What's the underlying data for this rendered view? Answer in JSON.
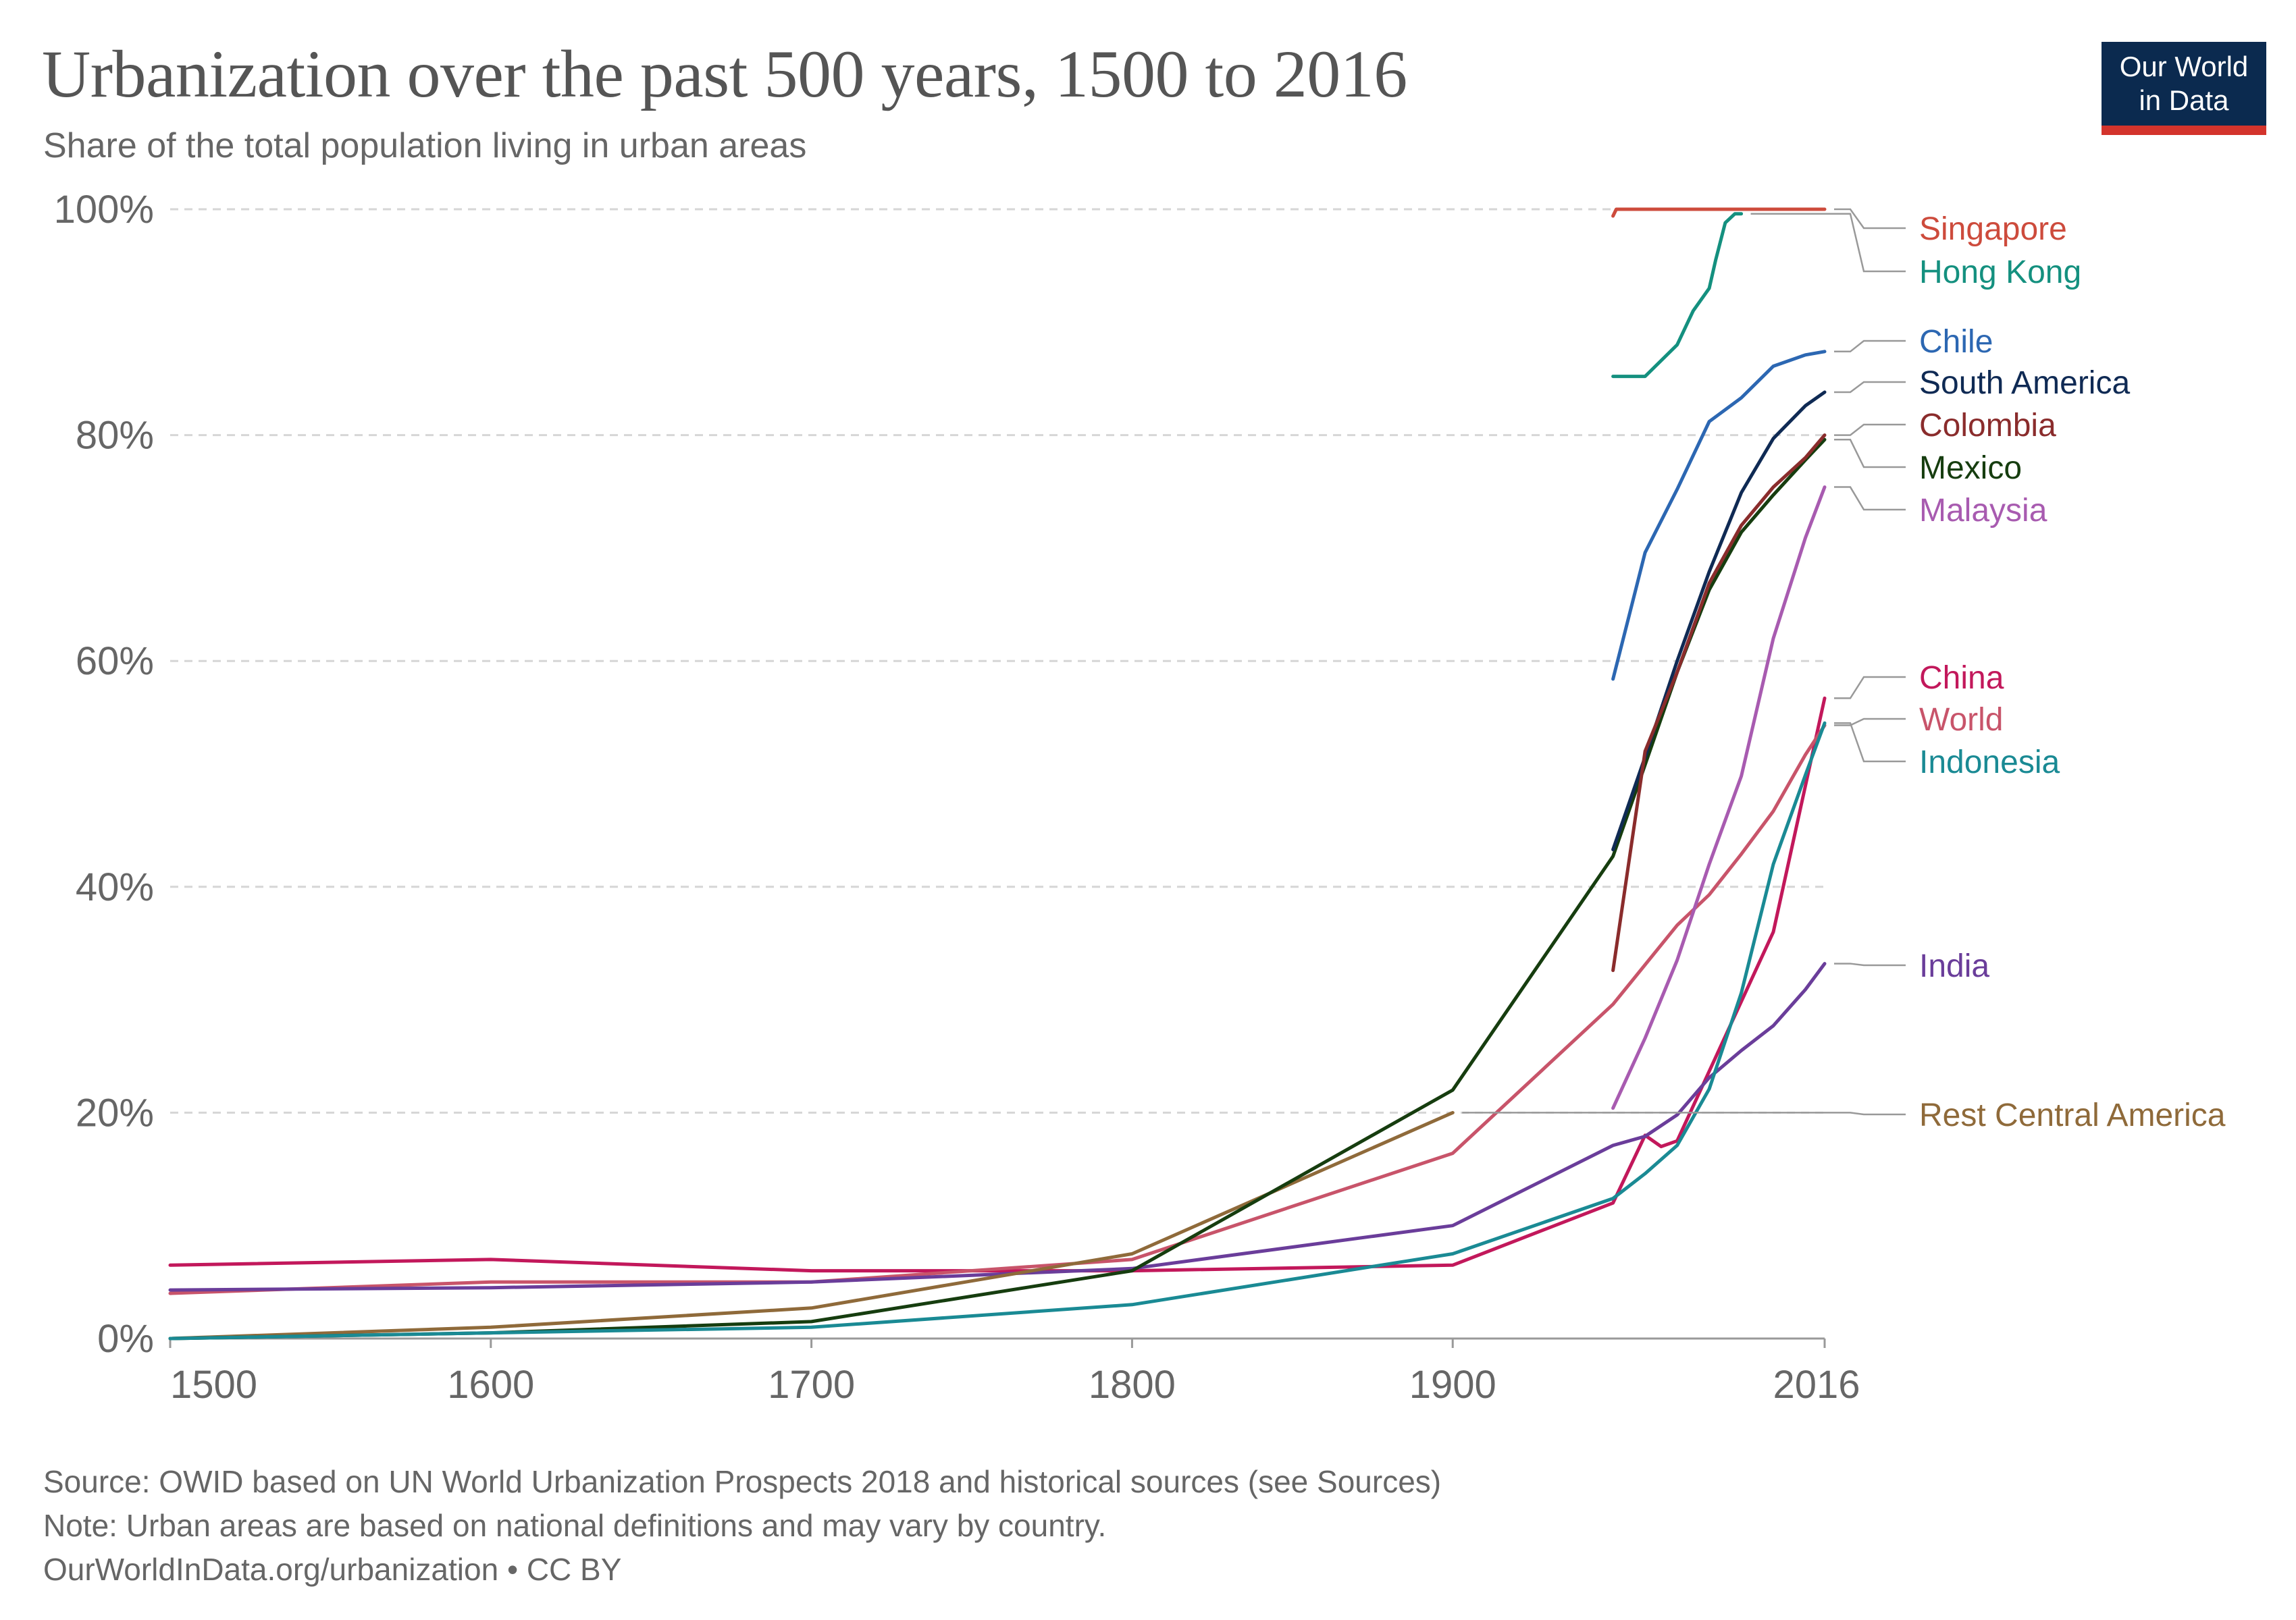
{
  "header": {
    "title": "Urbanization over the past 500 years, 1500 to 2016",
    "subtitle": "Share of the total population living in urban areas"
  },
  "logo": {
    "line1": "Our World",
    "line2": "in Data",
    "bg": "#0b2a4f",
    "bar": "#d3342c"
  },
  "footer": {
    "source": "Source: OWID based on UN World Urbanization Prospects 2018 and historical sources (see Sources)",
    "note": "Note: Urban areas are based on national definitions and may vary by country.",
    "url": "OurWorldInData.org/urbanization • CC BY"
  },
  "chart_data": {
    "type": "line",
    "title": "Urbanization over the past 500 years, 1500 to 2016",
    "subtitle": "Share of the total population living in urban areas",
    "xlim": [
      1500,
      2016
    ],
    "ylim": [
      0,
      100
    ],
    "x_ticks": [
      {
        "value": 1500,
        "label": "1500"
      },
      {
        "value": 1600,
        "label": "1600"
      },
      {
        "value": 1700,
        "label": "1700"
      },
      {
        "value": 1800,
        "label": "1800"
      },
      {
        "value": 1900,
        "label": "1900"
      },
      {
        "value": 2016,
        "label": "2016"
      }
    ],
    "y_ticks": [
      {
        "value": 0,
        "label": "0%"
      },
      {
        "value": 20,
        "label": "20%"
      },
      {
        "value": 40,
        "label": "40%"
      },
      {
        "value": 60,
        "label": "60%"
      },
      {
        "value": 80,
        "label": "80%"
      },
      {
        "value": 100,
        "label": "100%"
      }
    ],
    "grid": "horizontal dashed",
    "legend": "right, labels at line ends",
    "series": [
      {
        "name": "China",
        "color": "#c2185b",
        "x": [
          1500,
          1600,
          1700,
          1800,
          1900,
          1950,
          1960,
          1965,
          1970,
          2000,
          2016
        ],
        "y": [
          6.5,
          7,
          6,
          6,
          6.5,
          12,
          18,
          17,
          17.5,
          36,
          56.7
        ]
      },
      {
        "name": "World",
        "color": "#c8546a",
        "x": [
          1500,
          1600,
          1700,
          1800,
          1900,
          1950,
          1970,
          1980,
          1990,
          2000,
          2010,
          2016
        ],
        "y": [
          4,
          5,
          5,
          7,
          16.4,
          29.6,
          36.6,
          39.3,
          42.9,
          46.7,
          51.7,
          54.3
        ]
      },
      {
        "name": "India",
        "color": "#6a3d9a",
        "x": [
          1500,
          1600,
          1700,
          1800,
          1900,
          1950,
          1960,
          1970,
          1980,
          1990,
          2000,
          2010,
          2016
        ],
        "y": [
          4.3,
          4.5,
          5,
          6.2,
          10,
          17.1,
          17.9,
          19.8,
          23.1,
          25.5,
          27.7,
          30.9,
          33.2
        ]
      },
      {
        "name": "Rest Central America",
        "color": "#8f6a3a",
        "x": [
          1500,
          1600,
          1700,
          1800,
          1900
        ],
        "y": [
          0,
          1,
          2.7,
          7.5,
          20
        ]
      },
      {
        "name": "Mexico",
        "color": "#163d0f",
        "x": [
          1500,
          1600,
          1700,
          1800,
          1900,
          1950,
          1960,
          1970,
          1980,
          1990,
          2000,
          2010,
          2016
        ],
        "y": [
          0,
          0.5,
          1.5,
          6,
          22,
          42.7,
          50.8,
          59,
          66.3,
          71.4,
          74.7,
          77.8,
          79.6
        ]
      },
      {
        "name": "Indonesia",
        "color": "#1a8a94",
        "x": [
          1500,
          1700,
          1800,
          1900,
          1950,
          1960,
          1970,
          1980,
          1990,
          2000,
          2010,
          2016
        ],
        "y": [
          0,
          1,
          3,
          7.5,
          12.4,
          14.6,
          17.1,
          22.1,
          30.6,
          42,
          49.9,
          54.5
        ]
      },
      {
        "name": "Singapore",
        "color": "#cd4b3c",
        "x": [
          1950,
          1951,
          2016
        ],
        "y": [
          99.4,
          100,
          100
        ]
      },
      {
        "name": "Hong Kong",
        "color": "#14907f",
        "x": [
          1950,
          1960,
          1970,
          1975,
          1980,
          1982,
          1985,
          1988,
          1990
        ],
        "y": [
          85.2,
          85.2,
          88,
          91,
          93,
          95.5,
          98.8,
          99.6,
          99.6
        ]
      },
      {
        "name": "Chile",
        "color": "#2c67b2",
        "x": [
          1950,
          1955,
          1960,
          1970,
          1980,
          1990,
          2000,
          2010,
          2016
        ],
        "y": [
          58.4,
          64,
          69.6,
          75.2,
          81.2,
          83.3,
          86.1,
          87.1,
          87.4
        ]
      },
      {
        "name": "South America",
        "color": "#0f2a54",
        "x": [
          1950,
          1960,
          1970,
          1980,
          1990,
          2000,
          2010,
          2016
        ],
        "y": [
          43.3,
          51.5,
          60,
          67.9,
          74.9,
          79.7,
          82.6,
          83.8
        ]
      },
      {
        "name": "Colombia",
        "color": "#8a2c2c",
        "x": [
          1950,
          1960,
          1970,
          1980,
          1990,
          2000,
          2010,
          2016
        ],
        "y": [
          32.6,
          52,
          59,
          66.9,
          72,
          75.4,
          78,
          80
        ]
      },
      {
        "name": "Malaysia",
        "color": "#a85bb0",
        "x": [
          1950,
          1960,
          1970,
          1980,
          1990,
          2000,
          2010,
          2016
        ],
        "y": [
          20.4,
          26.6,
          33.5,
          42,
          49.8,
          62,
          70.9,
          75.4
        ]
      }
    ]
  },
  "labels": [
    {
      "text": "Singapore",
      "color": "#cd4b3c",
      "series": "Singapore"
    },
    {
      "text": "Hong Kong",
      "color": "#14907f",
      "series": "Hong Kong"
    },
    {
      "text": "Chile",
      "color": "#2c67b2",
      "series": "Chile"
    },
    {
      "text": "South America",
      "color": "#0f2a54",
      "series": "South America"
    },
    {
      "text": "Colombia",
      "color": "#8a2c2c",
      "series": "Colombia"
    },
    {
      "text": "Mexico",
      "color": "#163d0f",
      "series": "Mexico"
    },
    {
      "text": "Malaysia",
      "color": "#a85bb0",
      "series": "Malaysia"
    },
    {
      "text": "China",
      "color": "#c2185b",
      "series": "China"
    },
    {
      "text": "World",
      "color": "#c8546a",
      "series": "World"
    },
    {
      "text": "Indonesia",
      "color": "#1a8a94",
      "series": "Indonesia"
    },
    {
      "text": "India",
      "color": "#6a3d9a",
      "series": "India"
    },
    {
      "text": "Rest Central America",
      "color": "#8f6a3a",
      "series": "Rest Central America"
    }
  ]
}
